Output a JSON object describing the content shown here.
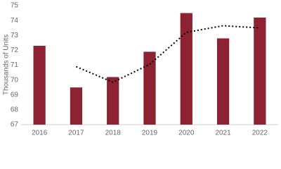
{
  "chart_data": {
    "type": "bar",
    "y_label": "Thousands of Units",
    "categories": [
      "2016",
      "2017",
      "2018",
      "2019",
      "2020",
      "2021",
      "2022"
    ],
    "series": [
      {
        "type": "bar",
        "color": "#8c2232",
        "values": [
          72.3,
          69.5,
          70.2,
          71.9,
          74.5,
          72.8,
          74.2
        ]
      },
      {
        "type": "line",
        "color": "#000000",
        "dash": true,
        "values": [
          null,
          70.9,
          69.85,
          71.05,
          73.2,
          73.65,
          73.5
        ]
      }
    ],
    "ylim": [
      67,
      75
    ],
    "yticks": [
      67,
      68,
      69,
      70,
      71,
      72,
      73,
      74,
      75
    ],
    "grid": false
  }
}
